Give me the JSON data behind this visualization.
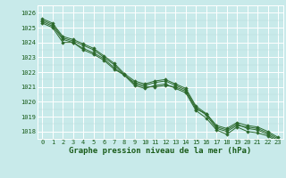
{
  "title": "Graphe pression niveau de la mer (hPa)",
  "hours": [
    0,
    1,
    2,
    3,
    4,
    5,
    6,
    7,
    8,
    9,
    10,
    11,
    12,
    13,
    14,
    15,
    16,
    17,
    18,
    19,
    20,
    21,
    22,
    23
  ],
  "series": [
    [
      1025.3,
      1025.0,
      1024.0,
      1024.0,
      1023.5,
      1023.2,
      1022.8,
      1022.2,
      1021.8,
      1021.2,
      1021.0,
      1021.0,
      1021.1,
      1021.0,
      1020.7,
      1019.5,
      1019.2,
      1018.3,
      1018.1,
      1018.5,
      1018.2,
      1018.1,
      1017.8,
      1017.4
    ],
    [
      1025.5,
      1025.2,
      1024.3,
      1024.1,
      1023.8,
      1023.5,
      1023.0,
      1022.5,
      1021.8,
      1021.3,
      1021.1,
      1021.3,
      1021.4,
      1021.1,
      1020.8,
      1019.6,
      1019.1,
      1018.2,
      1018.0,
      1018.4,
      1018.3,
      1018.2,
      1017.9,
      1017.5
    ],
    [
      1025.4,
      1025.1,
      1024.2,
      1024.0,
      1023.6,
      1023.3,
      1022.9,
      1022.3,
      1021.8,
      1021.1,
      1020.9,
      1021.1,
      1021.2,
      1020.9,
      1020.6,
      1019.4,
      1018.9,
      1018.1,
      1017.8,
      1018.3,
      1018.0,
      1017.9,
      1017.7,
      1017.3
    ],
    [
      1025.6,
      1025.3,
      1024.4,
      1024.2,
      1023.9,
      1023.6,
      1023.1,
      1022.6,
      1021.9,
      1021.4,
      1021.2,
      1021.4,
      1021.5,
      1021.2,
      1020.9,
      1019.7,
      1019.2,
      1018.4,
      1018.2,
      1018.6,
      1018.4,
      1018.3,
      1018.0,
      1017.6
    ]
  ],
  "line_color": "#2d6a2d",
  "marker_color": "#2d6a2d",
  "bg_color": "#c8eaea",
  "grid_color": "#ffffff",
  "minor_grid_color": "#b8dada",
  "axis_label_color": "#1a5c1a",
  "ylim": [
    1017.5,
    1026.5
  ],
  "yticks": [
    1018,
    1019,
    1020,
    1021,
    1022,
    1023,
    1024,
    1025,
    1026
  ],
  "marker": "D",
  "marker_size": 1.8,
  "line_width": 0.7,
  "title_fontsize": 6.5,
  "tick_fontsize": 5.0
}
